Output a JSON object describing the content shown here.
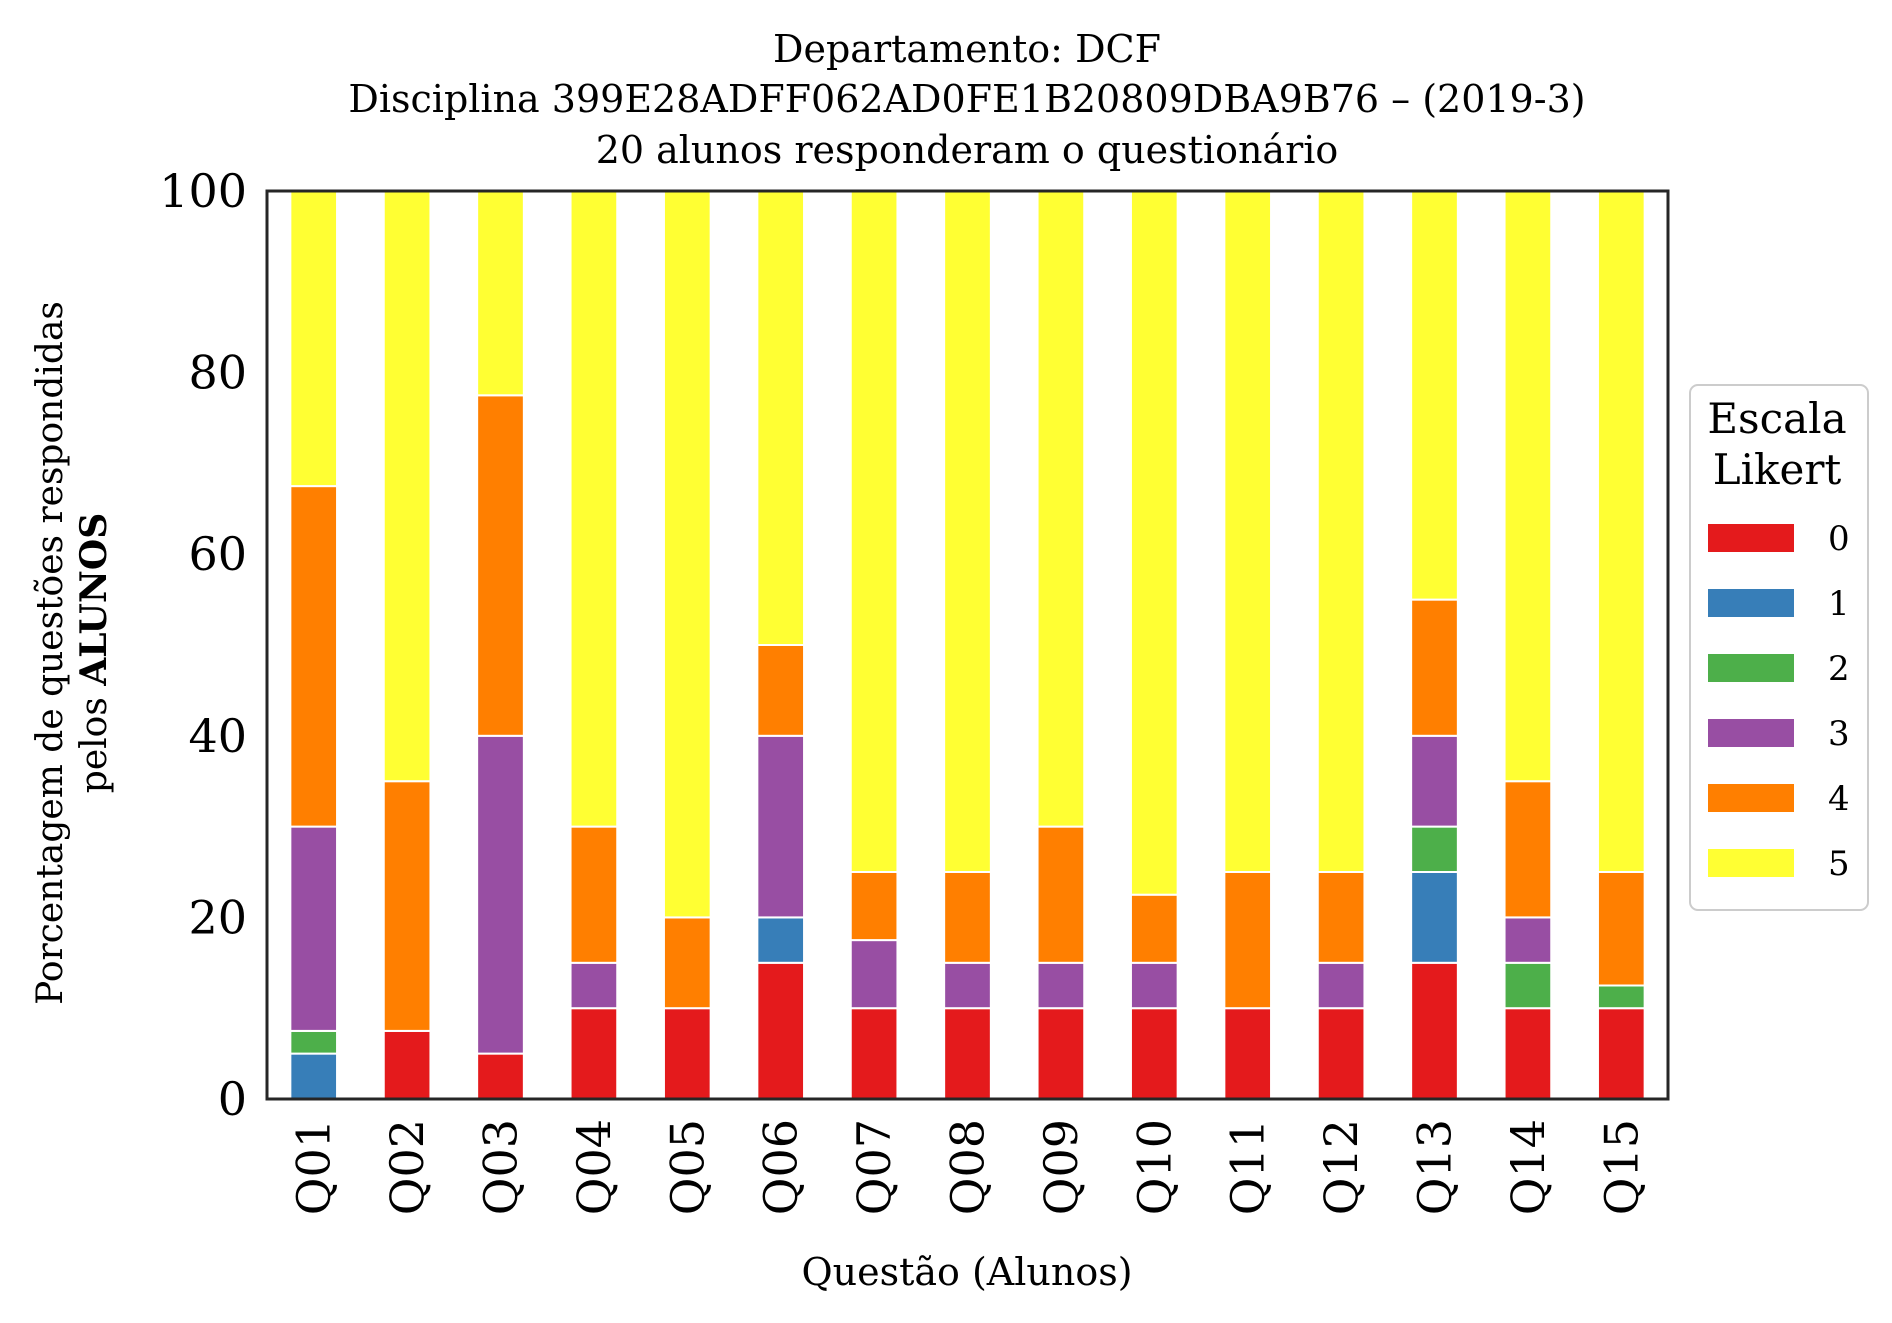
{
  "chart_data": {
    "type": "bar",
    "stacked": true,
    "title_lines": [
      "Departamento: DCF",
      "Disciplina 399E28ADFF062AD0FE1B20809DBA9B76 – (2019-3)",
      "20 alunos responderam o questionário"
    ],
    "xlabel": "Questão (Alunos)",
    "ylabel_line1": "Porcentagem de questões respondidas",
    "ylabel_line2_prefix": "pelos ",
    "ylabel_line2_bold": "ALUNOS",
    "ylim": [
      0,
      100
    ],
    "yticks": [
      "0",
      "20",
      "40",
      "60",
      "80",
      "100"
    ],
    "categories": [
      "Q01",
      "Q02",
      "Q03",
      "Q04",
      "Q05",
      "Q06",
      "Q07",
      "Q08",
      "Q09",
      "Q10",
      "Q11",
      "Q12",
      "Q13",
      "Q14",
      "Q15"
    ],
    "legend": {
      "title_line1": "Escala",
      "title_line2": "Likert",
      "position": "right"
    },
    "series": [
      {
        "name": "0",
        "color": "#e41a1c",
        "values": [
          0,
          7.5,
          5,
          10,
          10,
          15,
          10,
          10,
          10,
          10,
          10,
          10,
          15,
          10,
          10
        ]
      },
      {
        "name": "1",
        "color": "#377eb8",
        "values": [
          5,
          0,
          0,
          0,
          0,
          5,
          0,
          0,
          0,
          0,
          0,
          0,
          10,
          0,
          0
        ]
      },
      {
        "name": "2",
        "color": "#4daf4a",
        "values": [
          2.5,
          0,
          0,
          0,
          0,
          0,
          0,
          0,
          0,
          0,
          0,
          0,
          5,
          5,
          2.5
        ]
      },
      {
        "name": "3",
        "color": "#984ea3",
        "values": [
          22.5,
          0,
          35,
          5,
          0,
          20,
          7.5,
          5,
          5,
          5,
          0,
          5,
          10,
          5,
          0
        ]
      },
      {
        "name": "4",
        "color": "#ff7f00",
        "values": [
          37.5,
          27.5,
          37.5,
          15,
          10,
          10,
          7.5,
          10,
          15,
          7.5,
          15,
          10,
          15,
          15,
          12.5
        ]
      },
      {
        "name": "5",
        "color": "#ffff33",
        "values": [
          32.5,
          65,
          22.5,
          70,
          80,
          50,
          75,
          75,
          70,
          77.5,
          75,
          75,
          45,
          65,
          75
        ]
      }
    ]
  }
}
